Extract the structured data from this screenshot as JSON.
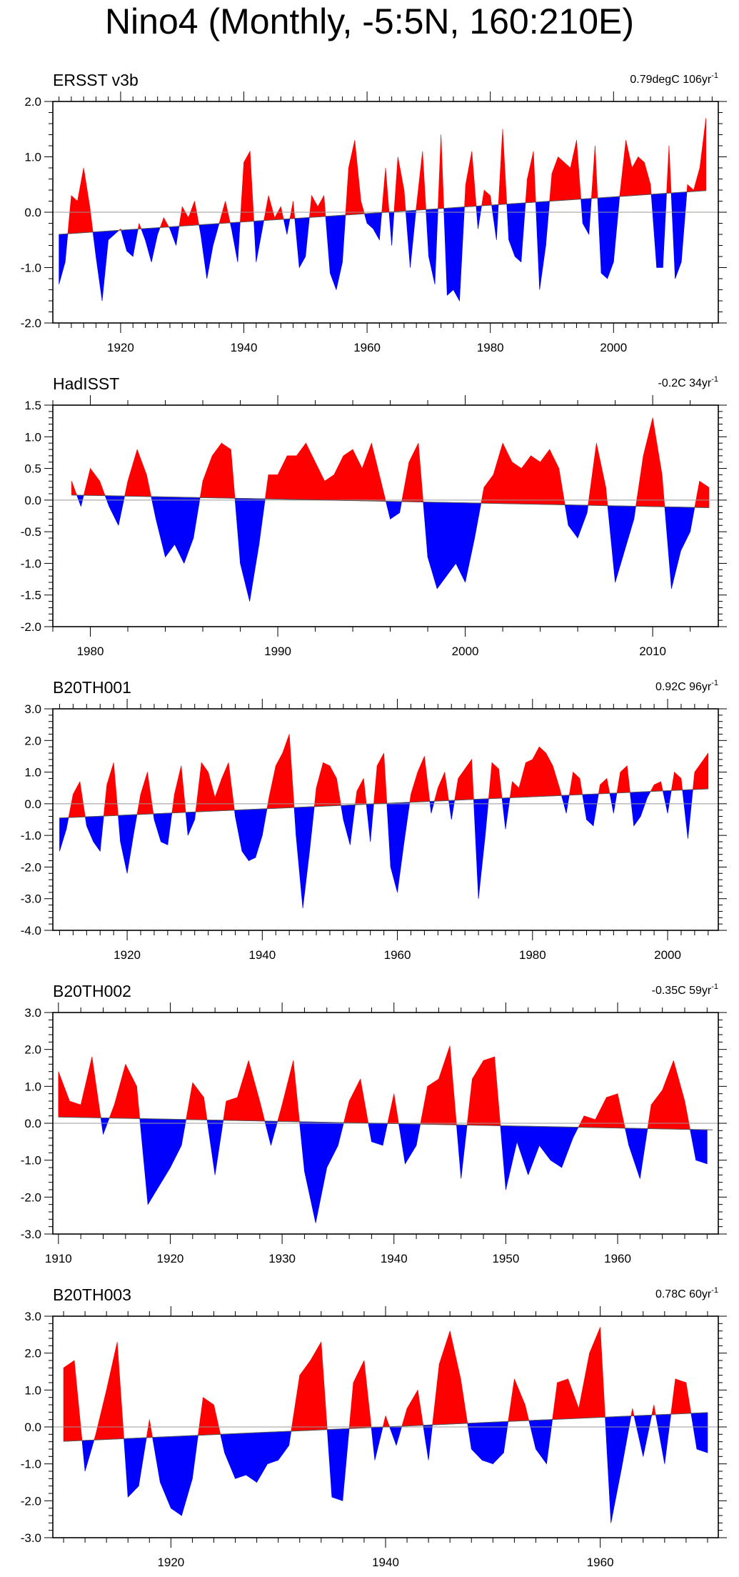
{
  "title": "Nino4 (Monthly, -5:5N, 160:210E)",
  "chart_data": [
    {
      "type": "area",
      "name": "ERSST v3b",
      "trend_value": "0.79degC 106yr",
      "trend_exp": "-1",
      "xlim": [
        1909,
        2017
      ],
      "ylim": [
        -2.0,
        2.0
      ],
      "y_ticks": [
        -2.0,
        -1.0,
        0.0,
        1.0,
        2.0
      ],
      "y_tick_labels": [
        "-2.0",
        "-1.0",
        "0.0",
        "1.0",
        "2.0"
      ],
      "x_ticks": [
        1920,
        1940,
        1960,
        1980,
        2000
      ],
      "x_tick_labels": [
        "1920",
        "1940",
        "1960",
        "1980",
        "2000"
      ],
      "trend_line": {
        "x": [
          1910,
          2015
        ],
        "y": [
          -0.4,
          0.39
        ]
      },
      "series": [
        {
          "name": "anomaly",
          "x": [
            1910,
            1911,
            1912,
            1913,
            1914,
            1915,
            1916,
            1917,
            1918,
            1919,
            1920,
            1921,
            1922,
            1923,
            1924,
            1925,
            1926,
            1927,
            1928,
            1929,
            1930,
            1931,
            1932,
            1933,
            1934,
            1935,
            1936,
            1937,
            1938,
            1939,
            1940,
            1941,
            1942,
            1943,
            1944,
            1945,
            1946,
            1947,
            1948,
            1949,
            1950,
            1951,
            1952,
            1953,
            1954,
            1955,
            1956,
            1957,
            1958,
            1959,
            1960,
            1961,
            1962,
            1963,
            1964,
            1965,
            1966,
            1967,
            1968,
            1969,
            1970,
            1971,
            1972,
            1973,
            1974,
            1975,
            1976,
            1977,
            1978,
            1979,
            1980,
            1981,
            1982,
            1983,
            1984,
            1985,
            1986,
            1987,
            1988,
            1989,
            1990,
            1991,
            1992,
            1993,
            1994,
            1995,
            1996,
            1997,
            1998,
            1999,
            2000,
            2001,
            2002,
            2003,
            2004,
            2005,
            2006,
            2007,
            2008,
            2009,
            2010,
            2011,
            2012,
            2013,
            2014,
            2015
          ],
          "values": [
            -1.3,
            -0.9,
            0.3,
            0.2,
            0.8,
            0.1,
            -0.8,
            -1.6,
            -0.5,
            -0.4,
            -0.3,
            -0.7,
            -0.8,
            -0.2,
            -0.5,
            -0.9,
            -0.4,
            -0.1,
            -0.3,
            -0.6,
            0.1,
            -0.1,
            0.2,
            -0.4,
            -1.2,
            -0.6,
            -0.2,
            0.2,
            -0.3,
            -0.9,
            0.9,
            1.1,
            -0.9,
            -0.3,
            0.3,
            -0.1,
            0.1,
            -0.4,
            0.2,
            -1.0,
            -0.8,
            0.3,
            0.1,
            0.3,
            -1.1,
            -1.4,
            -0.9,
            0.8,
            1.3,
            0.2,
            -0.2,
            -0.3,
            -0.5,
            0.8,
            -0.6,
            1.0,
            0.4,
            -1.0,
            0.1,
            1.1,
            -0.8,
            -1.3,
            1.4,
            -1.5,
            -1.4,
            -1.6,
            0.5,
            1.1,
            -0.3,
            0.4,
            0.3,
            -0.5,
            1.5,
            -0.5,
            -0.8,
            -0.9,
            0.6,
            1.1,
            -1.4,
            -0.6,
            0.7,
            1.0,
            0.9,
            0.8,
            1.3,
            -0.2,
            -0.4,
            1.2,
            -1.1,
            -1.2,
            -0.9,
            0.3,
            1.3,
            0.8,
            1.0,
            0.9,
            0.5,
            -1.0,
            -1.0,
            1.2,
            -1.2,
            -0.9,
            0.5,
            0.4,
            0.8,
            1.7
          ]
        }
      ]
    },
    {
      "type": "area",
      "name": "HadISST",
      "trend_value": "-0.2C 34yr",
      "trend_exp": "-1",
      "xlim": [
        1978,
        2013.5
      ],
      "ylim": [
        -2.0,
        1.5
      ],
      "y_ticks": [
        -2.0,
        -1.5,
        -1.0,
        -0.5,
        0.0,
        0.5,
        1.0,
        1.5
      ],
      "y_tick_labels": [
        "-2.0",
        "-1.5",
        "-1.0",
        "-0.5",
        "0.0",
        "0.5",
        "1.0",
        "1.5"
      ],
      "x_ticks": [
        1980,
        1990,
        2000,
        2010
      ],
      "x_tick_labels": [
        "1980",
        "1990",
        "2000",
        "2010"
      ],
      "trend_line": {
        "x": [
          1979,
          2013
        ],
        "y": [
          0.08,
          -0.12
        ]
      },
      "series": [
        {
          "name": "anomaly",
          "x": [
            1979,
            1979.5,
            1980,
            1980.5,
            1981,
            1981.5,
            1982,
            1982.5,
            1983,
            1983.5,
            1984,
            1984.5,
            1985,
            1985.5,
            1986,
            1986.5,
            1987,
            1987.5,
            1988,
            1988.5,
            1989,
            1989.5,
            1990,
            1990.5,
            1991,
            1991.5,
            1992,
            1992.5,
            1993,
            1993.5,
            1994,
            1994.5,
            1995,
            1995.5,
            1996,
            1996.5,
            1997,
            1997.5,
            1998,
            1998.5,
            1999,
            1999.5,
            2000,
            2000.5,
            2001,
            2001.5,
            2002,
            2002.5,
            2003,
            2003.5,
            2004,
            2004.5,
            2005,
            2005.5,
            2006,
            2006.5,
            2007,
            2007.5,
            2008,
            2008.5,
            2009,
            2009.5,
            2010,
            2010.5,
            2011,
            2011.5,
            2012,
            2012.5,
            2013
          ],
          "values": [
            0.3,
            -0.1,
            0.5,
            0.3,
            -0.1,
            -0.4,
            0.3,
            0.8,
            0.4,
            -0.3,
            -0.9,
            -0.7,
            -1.0,
            -0.6,
            0.3,
            0.7,
            0.9,
            0.8,
            -1.0,
            -1.6,
            -0.7,
            0.4,
            0.4,
            0.7,
            0.7,
            0.9,
            0.6,
            0.3,
            0.4,
            0.7,
            0.8,
            0.5,
            0.9,
            0.3,
            -0.3,
            -0.2,
            0.6,
            0.9,
            -0.9,
            -1.4,
            -1.2,
            -1.0,
            -1.3,
            -0.6,
            0.2,
            0.4,
            0.9,
            0.6,
            0.5,
            0.7,
            0.6,
            0.8,
            0.5,
            -0.4,
            -0.6,
            -0.2,
            0.9,
            0.2,
            -1.3,
            -0.8,
            -0.3,
            0.7,
            1.3,
            0.4,
            -1.4,
            -0.8,
            -0.5,
            0.3,
            0.2
          ]
        }
      ]
    },
    {
      "type": "area",
      "name": "B20TH001",
      "trend_value": "0.92C 96yr",
      "trend_exp": "-1",
      "xlim": [
        1909,
        2007.5
      ],
      "ylim": [
        -4.0,
        3.0
      ],
      "y_ticks": [
        -4.0,
        -3.0,
        -2.0,
        -1.0,
        0.0,
        1.0,
        2.0,
        3.0
      ],
      "y_tick_labels": [
        "-4.0",
        "-3.0",
        "-2.0",
        "-1.0",
        "0.0",
        "1.0",
        "2.0",
        "3.0"
      ],
      "x_ticks": [
        1920,
        1940,
        1960,
        1980,
        2000
      ],
      "x_tick_labels": [
        "1920",
        "1940",
        "1960",
        "1980",
        "2000"
      ],
      "trend_line": {
        "x": [
          1910,
          2006
        ],
        "y": [
          -0.45,
          0.47
        ]
      },
      "series": [
        {
          "name": "anomaly",
          "x": [
            1910,
            1911,
            1912,
            1913,
            1914,
            1915,
            1916,
            1917,
            1918,
            1919,
            1920,
            1921,
            1922,
            1923,
            1924,
            1925,
            1926,
            1927,
            1928,
            1929,
            1930,
            1931,
            1932,
            1933,
            1934,
            1935,
            1936,
            1937,
            1938,
            1939,
            1940,
            1941,
            1942,
            1943,
            1944,
            1945,
            1946,
            1947,
            1948,
            1949,
            1950,
            1951,
            1952,
            1953,
            1954,
            1955,
            1956,
            1957,
            1958,
            1959,
            1960,
            1961,
            1962,
            1963,
            1964,
            1965,
            1966,
            1967,
            1968,
            1969,
            1970,
            1971,
            1972,
            1973,
            1974,
            1975,
            1976,
            1977,
            1978,
            1979,
            1980,
            1981,
            1982,
            1983,
            1984,
            1985,
            1986,
            1987,
            1988,
            1989,
            1990,
            1991,
            1992,
            1993,
            1994,
            1995,
            1996,
            1997,
            1998,
            1999,
            2000,
            2001,
            2002,
            2003,
            2004,
            2005,
            2006
          ],
          "values": [
            -1.5,
            -0.8,
            0.3,
            0.7,
            -0.7,
            -1.2,
            -1.5,
            0.6,
            1.3,
            -1.2,
            -2.2,
            -0.9,
            0.3,
            1.0,
            -0.5,
            -1.2,
            -1.3,
            0.3,
            1.2,
            -1.0,
            -0.5,
            1.3,
            1.0,
            0.2,
            0.8,
            1.3,
            -0.4,
            -1.5,
            -1.8,
            -1.7,
            -1.0,
            0.2,
            1.2,
            1.6,
            2.2,
            -1.0,
            -3.3,
            -1.5,
            0.5,
            1.3,
            1.2,
            0.8,
            -0.5,
            -1.3,
            0.4,
            0.8,
            -1.2,
            1.2,
            1.6,
            -2.0,
            -2.8,
            -1.2,
            0.3,
            1.0,
            1.5,
            -0.3,
            0.5,
            1.0,
            -0.5,
            0.8,
            1.1,
            1.4,
            -3.0,
            -1.0,
            1.3,
            1.1,
            -0.8,
            0.7,
            0.5,
            1.3,
            1.4,
            1.8,
            1.6,
            1.2,
            0.5,
            -0.3,
            1.0,
            0.8,
            -0.5,
            -0.7,
            0.6,
            0.8,
            -0.3,
            1.0,
            1.2,
            -0.7,
            -0.4,
            0.2,
            0.6,
            0.7,
            -0.3,
            1.0,
            0.8,
            -1.1,
            1.0,
            1.3,
            1.6
          ]
        }
      ]
    },
    {
      "type": "area",
      "name": "B20TH002",
      "trend_value": "-0.35C 59yr",
      "trend_exp": "-1",
      "xlim": [
        1909.5,
        1969
      ],
      "ylim": [
        -3.0,
        3.0
      ],
      "y_ticks": [
        -3.0,
        -2.0,
        -1.0,
        0.0,
        1.0,
        2.0,
        3.0
      ],
      "y_tick_labels": [
        "-3.0",
        "-2.0",
        "-1.0",
        "0.0",
        "1.0",
        "2.0",
        "3.0"
      ],
      "x_ticks": [
        1910,
        1920,
        1930,
        1940,
        1950,
        1960
      ],
      "x_tick_labels": [
        "1910",
        "1920",
        "1930",
        "1940",
        "1950",
        "1960"
      ],
      "trend_line": {
        "x": [
          1910,
          1968.5
        ],
        "y": [
          0.17,
          -0.18
        ]
      },
      "series": [
        {
          "name": "anomaly",
          "x": [
            1910,
            1911,
            1912,
            1913,
            1914,
            1915,
            1916,
            1917,
            1918,
            1919,
            1920,
            1921,
            1922,
            1923,
            1924,
            1925,
            1926,
            1927,
            1928,
            1929,
            1930,
            1931,
            1932,
            1933,
            1934,
            1935,
            1936,
            1937,
            1938,
            1939,
            1940,
            1941,
            1942,
            1943,
            1944,
            1945,
            1946,
            1947,
            1948,
            1949,
            1950,
            1951,
            1952,
            1953,
            1954,
            1955,
            1956,
            1957,
            1958,
            1959,
            1960,
            1961,
            1962,
            1963,
            1964,
            1965,
            1966,
            1967,
            1968
          ],
          "values": [
            1.4,
            0.6,
            0.5,
            1.8,
            -0.3,
            0.5,
            1.6,
            1.0,
            -2.2,
            -1.7,
            -1.2,
            -0.6,
            1.1,
            0.7,
            -1.4,
            0.6,
            0.7,
            1.7,
            0.6,
            -0.6,
            0.5,
            1.7,
            -1.3,
            -2.7,
            -1.2,
            -0.6,
            0.6,
            1.2,
            -0.5,
            -0.6,
            0.8,
            -1.1,
            -0.6,
            1.0,
            1.2,
            2.1,
            -1.5,
            1.2,
            1.7,
            1.8,
            -1.8,
            -0.5,
            -1.4,
            -0.6,
            -1.0,
            -1.2,
            -0.4,
            0.2,
            0.1,
            0.7,
            0.8,
            -0.6,
            -1.5,
            0.5,
            0.9,
            1.7,
            0.6,
            -1.0,
            -1.1
          ]
        }
      ]
    },
    {
      "type": "area",
      "name": "B20TH003",
      "trend_value": "0.78C 60yr",
      "trend_exp": "-1",
      "xlim": [
        1909,
        1971
      ],
      "ylim": [
        -3.0,
        3.0
      ],
      "y_ticks": [
        -3.0,
        -2.0,
        -1.0,
        0.0,
        1.0,
        2.0,
        3.0
      ],
      "y_tick_labels": [
        "-3.0",
        "-2.0",
        "-1.0",
        "0.0",
        "1.0",
        "2.0",
        "3.0"
      ],
      "x_ticks": [
        1920,
        1940,
        1960
      ],
      "x_tick_labels": [
        "1920",
        "1940",
        "1960"
      ],
      "trend_line": {
        "x": [
          1910,
          1970
        ],
        "y": [
          -0.39,
          0.39
        ]
      },
      "series": [
        {
          "name": "anomaly",
          "x": [
            1910,
            1911,
            1912,
            1913,
            1914,
            1915,
            1916,
            1917,
            1918,
            1919,
            1920,
            1921,
            1922,
            1923,
            1924,
            1925,
            1926,
            1927,
            1928,
            1929,
            1930,
            1931,
            1932,
            1933,
            1934,
            1935,
            1936,
            1937,
            1938,
            1939,
            1940,
            1941,
            1942,
            1943,
            1944,
            1945,
            1946,
            1947,
            1948,
            1949,
            1950,
            1951,
            1952,
            1953,
            1954,
            1955,
            1956,
            1957,
            1958,
            1959,
            1960,
            1961,
            1962,
            1963,
            1964,
            1965,
            1966,
            1967,
            1968,
            1969,
            1970
          ],
          "values": [
            1.6,
            1.8,
            -1.2,
            -0.2,
            1.0,
            2.3,
            -1.9,
            -1.6,
            0.2,
            -1.5,
            -2.2,
            -2.4,
            -1.4,
            0.8,
            0.6,
            -0.7,
            -1.4,
            -1.3,
            -1.5,
            -1.0,
            -0.9,
            -0.5,
            1.4,
            1.8,
            2.3,
            -1.9,
            -2.0,
            1.2,
            1.8,
            -0.9,
            0.3,
            -0.5,
            0.5,
            1.0,
            -0.9,
            1.7,
            2.6,
            1.3,
            -0.6,
            -0.9,
            -1.0,
            -0.7,
            1.3,
            0.6,
            -0.6,
            -1.0,
            1.2,
            1.3,
            0.5,
            2.0,
            2.7,
            -2.6,
            -1.1,
            0.5,
            -0.8,
            0.6,
            -1.0,
            1.3,
            1.2,
            -0.6,
            -0.7
          ]
        }
      ]
    }
  ]
}
